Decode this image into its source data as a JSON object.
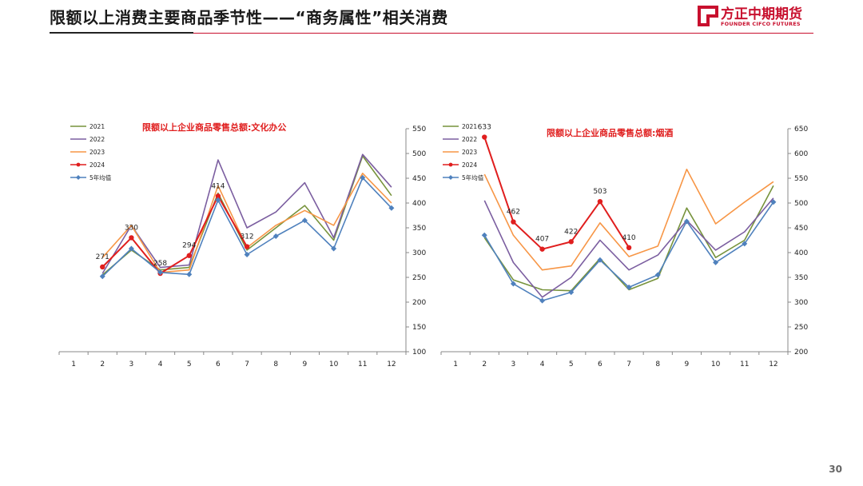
{
  "header": {
    "title": "限额以上消费主要商品季节性——“商务属性”相关消费",
    "logo_cn": "方正中期期货",
    "logo_en": "FOUNDER CIFCO FUTURES"
  },
  "page_number": "30",
  "colors": {
    "accent": "#c8102e",
    "s2021": "#77933c",
    "s2022": "#7b5ea0",
    "s2023": "#f79646",
    "s2024": "#e01e1e",
    "avg": "#4f81bd"
  },
  "chart_data": [
    {
      "type": "line",
      "title": "限额以上企业商品零售总额:文化办公",
      "x": [
        1,
        2,
        3,
        4,
        5,
        6,
        7,
        8,
        9,
        10,
        11,
        12
      ],
      "ylim": [
        100,
        550
      ],
      "yticks": [
        100,
        150,
        200,
        250,
        300,
        350,
        400,
        450,
        500,
        550
      ],
      "y_axis_side": "right",
      "legend_position": "top-left",
      "series": [
        {
          "name": "2021",
          "color": "#77933c",
          "marker": "none",
          "values": [
            null,
            255,
            305,
            265,
            270,
            420,
            305,
            350,
            395,
            325,
            495,
            415
          ]
        },
        {
          "name": "2022",
          "color": "#7b5ea0",
          "marker": "none",
          "values": [
            null,
            258,
            355,
            270,
            275,
            487,
            350,
            382,
            441,
            330,
            498,
            432
          ]
        },
        {
          "name": "2023",
          "color": "#f79646",
          "marker": "none",
          "values": [
            null,
            290,
            355,
            260,
            265,
            435,
            310,
            355,
            385,
            355,
            460,
            400
          ]
        },
        {
          "name": "2024",
          "color": "#e01e1e",
          "marker": "dot",
          "values": [
            null,
            271,
            330,
            258,
            294,
            414,
            312,
            null,
            null,
            null,
            null,
            null
          ]
        },
        {
          "name": "5年均值",
          "color": "#4f81bd",
          "marker": "diamond",
          "values": [
            null,
            252,
            308,
            260,
            256,
            406,
            296,
            333,
            365,
            308,
            451,
            390
          ]
        }
      ],
      "data_labels": [
        {
          "x": 2,
          "text": "271"
        },
        {
          "x": 3,
          "text": "330"
        },
        {
          "x": 4,
          "text": "258"
        },
        {
          "x": 5,
          "text": "294"
        },
        {
          "x": 6,
          "text": "414"
        },
        {
          "x": 7,
          "text": "312"
        }
      ]
    },
    {
      "type": "line",
      "title": "限额以上企业商品零售总额:烟酒",
      "x": [
        1,
        2,
        3,
        4,
        5,
        6,
        7,
        8,
        9,
        10,
        11,
        12
      ],
      "ylim": [
        200,
        650
      ],
      "yticks": [
        200,
        250,
        300,
        350,
        400,
        450,
        500,
        550,
        600,
        650
      ],
      "y_axis_side": "right",
      "legend_position": "top-left",
      "series": [
        {
          "name": "2021",
          "color": "#77933c",
          "marker": "none",
          "values": [
            null,
            430,
            345,
            325,
            323,
            388,
            325,
            348,
            490,
            390,
            425,
            535
          ]
        },
        {
          "name": "2022",
          "color": "#7b5ea0",
          "marker": "none",
          "values": [
            null,
            505,
            380,
            310,
            350,
            425,
            365,
            395,
            465,
            405,
            442,
            510
          ]
        },
        {
          "name": "2023",
          "color": "#f79646",
          "marker": "none",
          "values": [
            null,
            558,
            435,
            365,
            373,
            460,
            392,
            413,
            568,
            458,
            502,
            543
          ]
        },
        {
          "name": "2024",
          "color": "#e01e1e",
          "marker": "dot",
          "values": [
            null,
            633,
            462,
            407,
            422,
            503,
            410,
            null,
            null,
            null,
            null,
            null
          ]
        },
        {
          "name": "5年均值",
          "color": "#4f81bd",
          "marker": "diamond",
          "values": [
            null,
            435,
            337,
            303,
            320,
            385,
            330,
            355,
            463,
            380,
            418,
            502
          ]
        }
      ],
      "data_labels": [
        {
          "x": 2,
          "text": "633"
        },
        {
          "x": 3,
          "text": "462"
        },
        {
          "x": 4,
          "text": "407"
        },
        {
          "x": 5,
          "text": "422"
        },
        {
          "x": 6,
          "text": "503"
        },
        {
          "x": 7,
          "text": "410"
        }
      ]
    }
  ]
}
